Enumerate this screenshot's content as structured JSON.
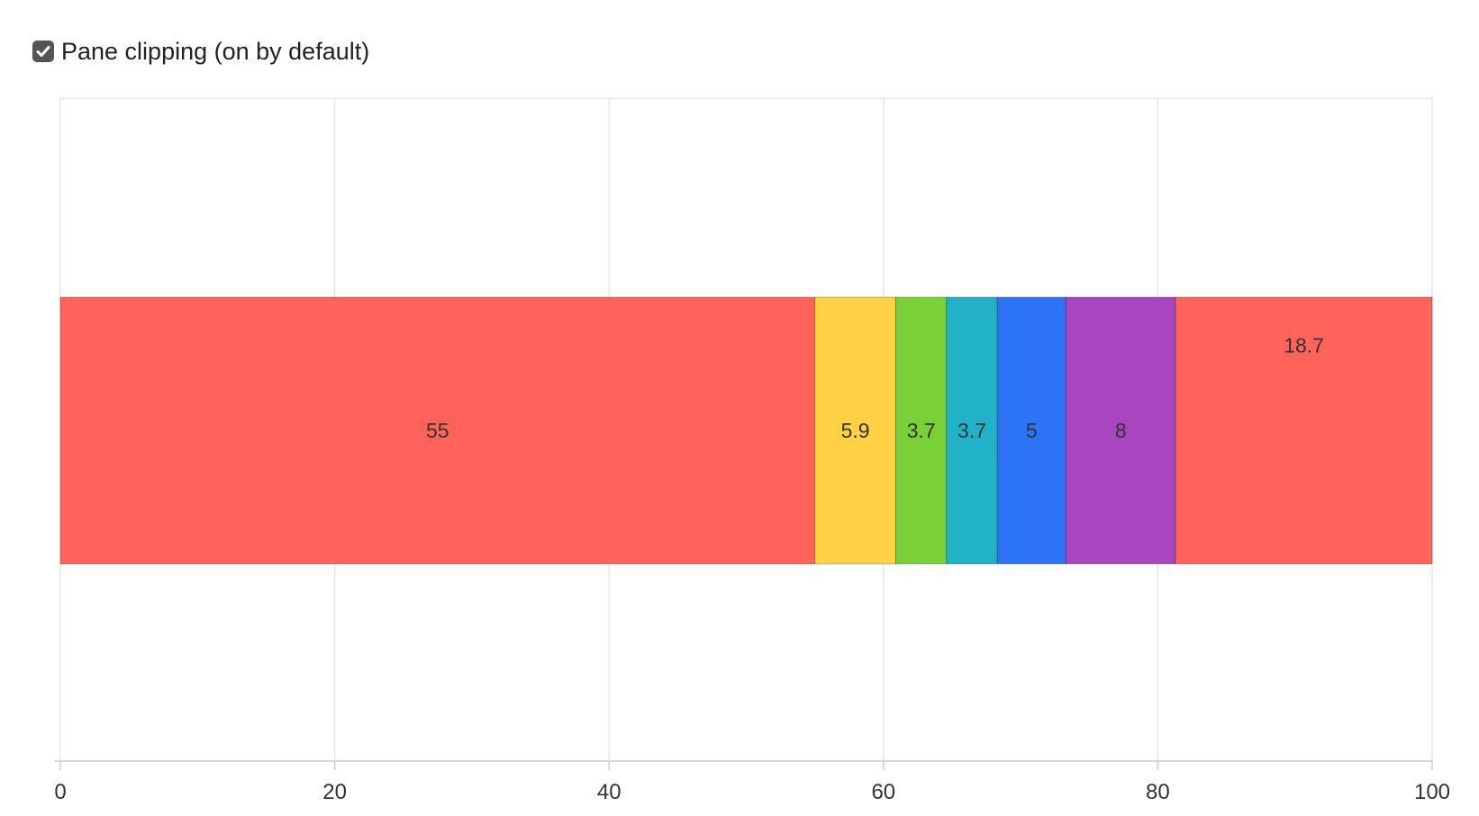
{
  "controls": {
    "pane_clipping_checkbox": {
      "label": "Pane clipping (on by default)",
      "checked": true
    }
  },
  "chart_data": {
    "type": "bar",
    "orientation": "horizontal",
    "stacked": true,
    "title": "",
    "xlabel": "",
    "ylabel": "",
    "xlim": [
      0,
      100
    ],
    "x_ticks": [
      0,
      20,
      40,
      60,
      80,
      100
    ],
    "grid": true,
    "legend": "none",
    "segments": [
      {
        "value": 55,
        "label": "55",
        "color": "#ff6359"
      },
      {
        "value": 5.9,
        "label": "5.9",
        "color": "#ffd246"
      },
      {
        "value": 3.7,
        "label": "3.7",
        "color": "#79d137"
      },
      {
        "value": 3.7,
        "label": "3.7",
        "color": "#22b2c8"
      },
      {
        "value": 5,
        "label": "5",
        "color": "#2c74f5"
      },
      {
        "value": 8,
        "label": "8",
        "color": "#a845bf"
      },
      {
        "value": 18.7,
        "label": "18.7",
        "color": "#ff6359"
      }
    ]
  }
}
